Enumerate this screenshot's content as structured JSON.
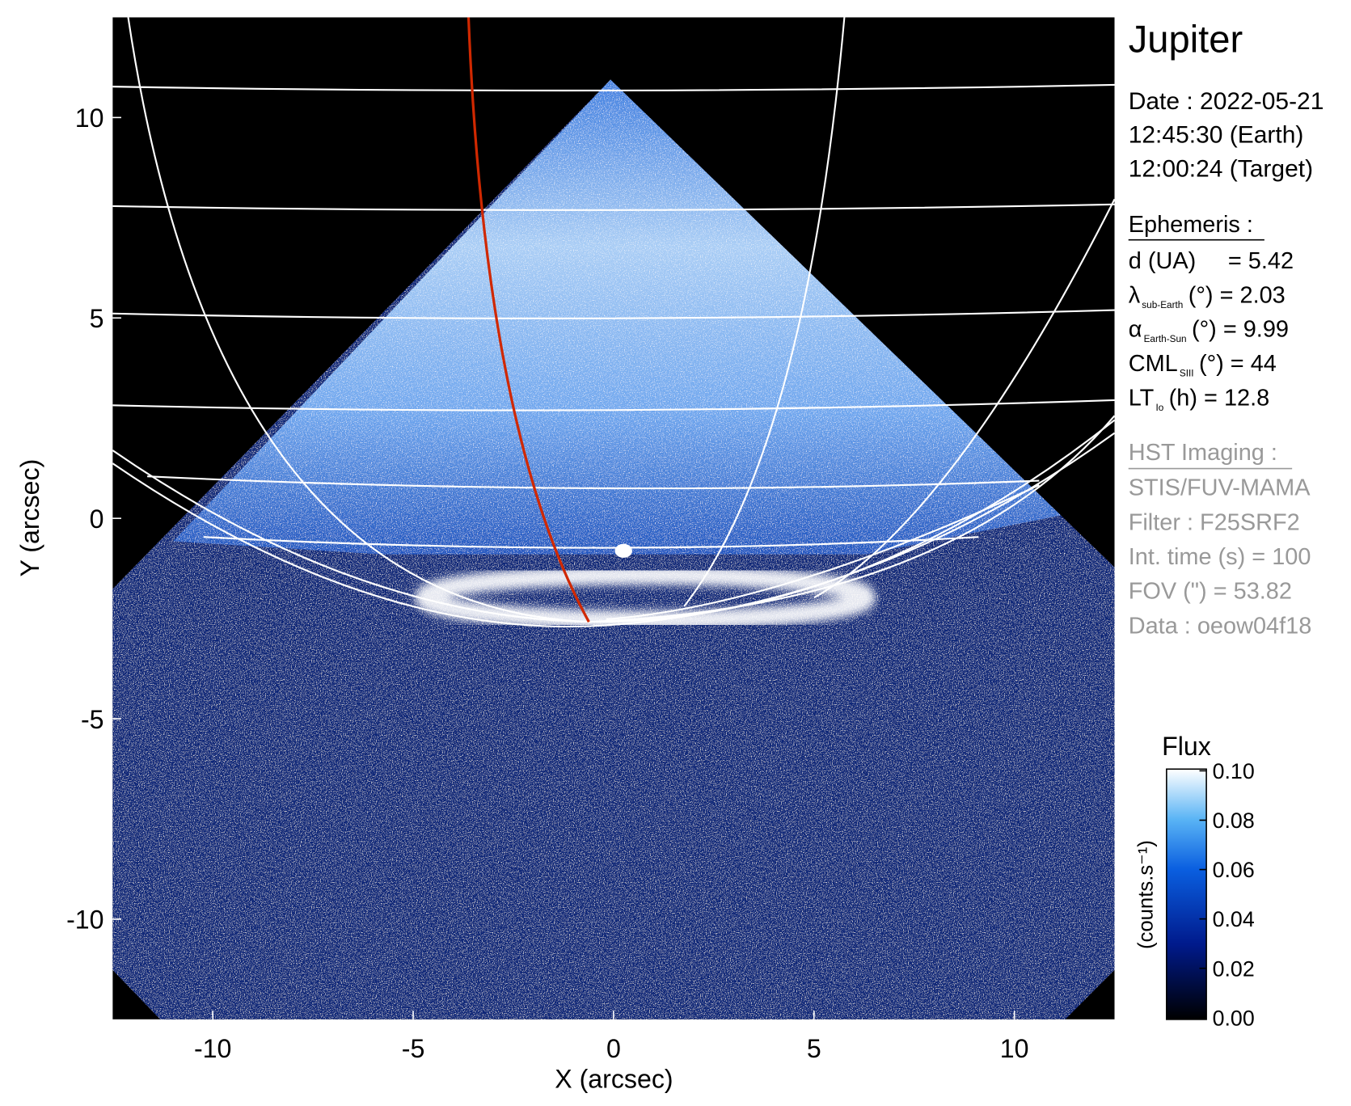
{
  "chart_data": {
    "type": "image",
    "title": "Jupiter",
    "xlabel": "X (arcsec)",
    "ylabel": "Y (arcsec)",
    "xlim": [
      -12.5,
      12.5
    ],
    "ylim": [
      -12.5,
      12.5
    ],
    "xticks": [
      -10,
      -5,
      0,
      5,
      10
    ],
    "yticks": [
      -10,
      -5,
      0,
      5,
      10
    ],
    "colorbar": {
      "title": "Flux",
      "label": "(counts.s⁻¹)",
      "lim": [
        0,
        0.1
      ],
      "ticks": [
        {
          "value": 0,
          "label": "0.00"
        },
        0.02,
        0.04,
        0.06,
        0.08,
        {
          "value": 0.1,
          "label": "0.10"
        }
      ]
    },
    "info": {
      "time": [
        "Date : 2022-05-21",
        "12:45:30 (Earth)",
        "12:00:24 (Target)"
      ],
      "ephemeris": {
        "heading": "Ephemeris :",
        "rows": [
          {
            "text": "d (UA)",
            "rest": "= 5.42"
          },
          {
            "text": "λ",
            "sub": "sub-Earth",
            "rest": "(°) = 2.03"
          },
          {
            "text": "α",
            "sub": "Earth-Sun",
            "rest": "(°) = 9.99"
          },
          {
            "text": "CML",
            "sub": "SIII",
            "rest": "(°) = 44"
          },
          {
            "text": "LT",
            "sub": "Io",
            "rest": "(h) = 12.8"
          }
        ]
      },
      "imaging": {
        "heading": "HST Imaging :",
        "lines": [
          "STIS/FUV-MAMA",
          "Filter : F25SRF2",
          "Int. time (s) = 100",
          "FOV (\") = 53.82",
          "Data : oeow04f18"
        ]
      }
    }
  }
}
